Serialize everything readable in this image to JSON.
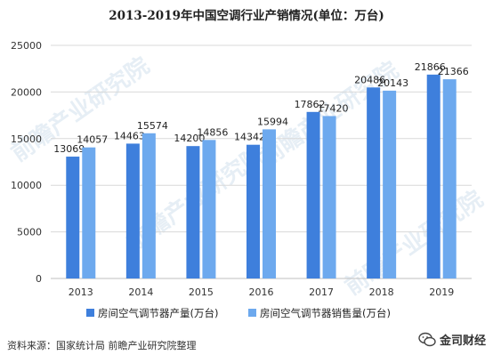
{
  "chart_data": {
    "type": "bar",
    "title": "2013-2019年中国空调行业产销情况(单位：万台)",
    "categories": [
      "2013",
      "2014",
      "2015",
      "2016",
      "2017",
      "2018",
      "2019"
    ],
    "series": [
      {
        "name": "房间空气调节器产量(万台)",
        "values": [
          13069,
          14463,
          14200,
          14342,
          17862,
          20486,
          21866
        ],
        "color": "#3e7fdc"
      },
      {
        "name": "房间空气调节器销售量(万台)",
        "values": [
          14057,
          15574,
          14856,
          15994,
          17420,
          20143,
          21366
        ],
        "color": "#6da9ee"
      }
    ],
    "ylim": [
      0,
      25000
    ],
    "yticks": [
      0,
      5000,
      10000,
      15000,
      20000,
      25000
    ],
    "grid": true,
    "legend_position": "bottom"
  },
  "source": "资料来源：国家统计局 前瞻产业研究院整理",
  "watermark": "前瞻产业研究院",
  "logo": {
    "text": "金司财经",
    "icon": "wechat-bubble-icon"
  }
}
